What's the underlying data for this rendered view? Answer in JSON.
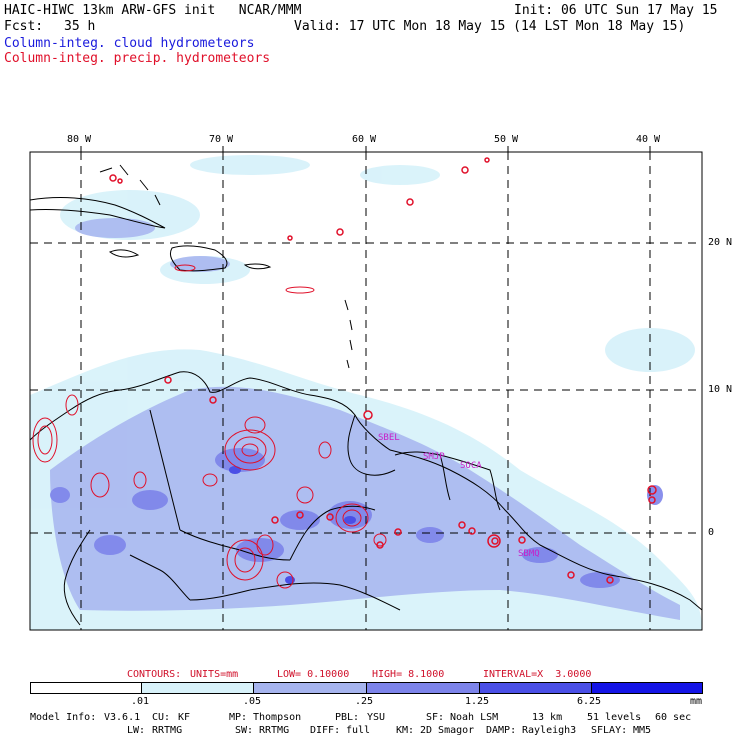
{
  "header": {
    "model_line": "HAIC-HIWC 13km ARW-GFS init   NCAR/MMM",
    "init_line": "Init: 06 UTC Sun 17 May 15",
    "fcst_label": "Fcst:",
    "fcst_value": "35 h",
    "valid_line": "Valid: 17 UTC Mon 18 May 15 (14 LST Mon 18 May 15)",
    "legend_cloud": "Column-integ. cloud hydrometeors",
    "legend_precip": "Column-integ. precip. hydrometeors"
  },
  "colors": {
    "cloud_text": "#1a1adc",
    "precip_text": "#e0102a",
    "shade_1": "#d8f2fa",
    "shade_2": "#a6b4ee",
    "shade_3": "#7d84ea",
    "shade_4": "#4a4fe6",
    "shade_5": "#1414e6"
  },
  "map": {
    "lon_labels": [
      "80 W",
      "70 W",
      "60 W",
      "50 W",
      "40 W"
    ],
    "lat_labels": [
      "20 N",
      "10 N",
      "0"
    ],
    "annotations": [
      "SBEL",
      "SMJP",
      "SOCA",
      "SBMQ"
    ]
  },
  "contour_info": {
    "label": "CONTOURS:",
    "units": "UNITS=mm",
    "low": "LOW= 0.10000",
    "high": "HIGH= 8.1000",
    "interval": "INTERVAL=X  3.0000"
  },
  "colorbar": {
    "labels": [
      ".01",
      ".05",
      ".25",
      "1.25",
      "6.25"
    ],
    "units": "mm"
  },
  "model_info": {
    "line1": [
      {
        "k": "Model Info:",
        "v": "V3.6.1"
      },
      {
        "k": "CU:",
        "v": "KF"
      },
      {
        "k": "MP:",
        "v": "Thompson"
      },
      {
        "k": "PBL:",
        "v": "YSU"
      },
      {
        "k": "SF:",
        "v": "Noah LSM"
      },
      {
        "k": "",
        "v": "13 km"
      },
      {
        "k": "",
        "v": "51 levels"
      },
      {
        "k": "",
        "v": "60 sec"
      }
    ],
    "line2": [
      {
        "k": "LW:",
        "v": "RRTMG"
      },
      {
        "k": "SW:",
        "v": "RRTMG"
      },
      {
        "k": "DIFF:",
        "v": "full"
      },
      {
        "k": "KM:",
        "v": "2D Smagor"
      },
      {
        "k": "DAMP:",
        "v": "Rayleigh3"
      },
      {
        "k": "SFLAY:",
        "v": "MM5"
      }
    ]
  }
}
